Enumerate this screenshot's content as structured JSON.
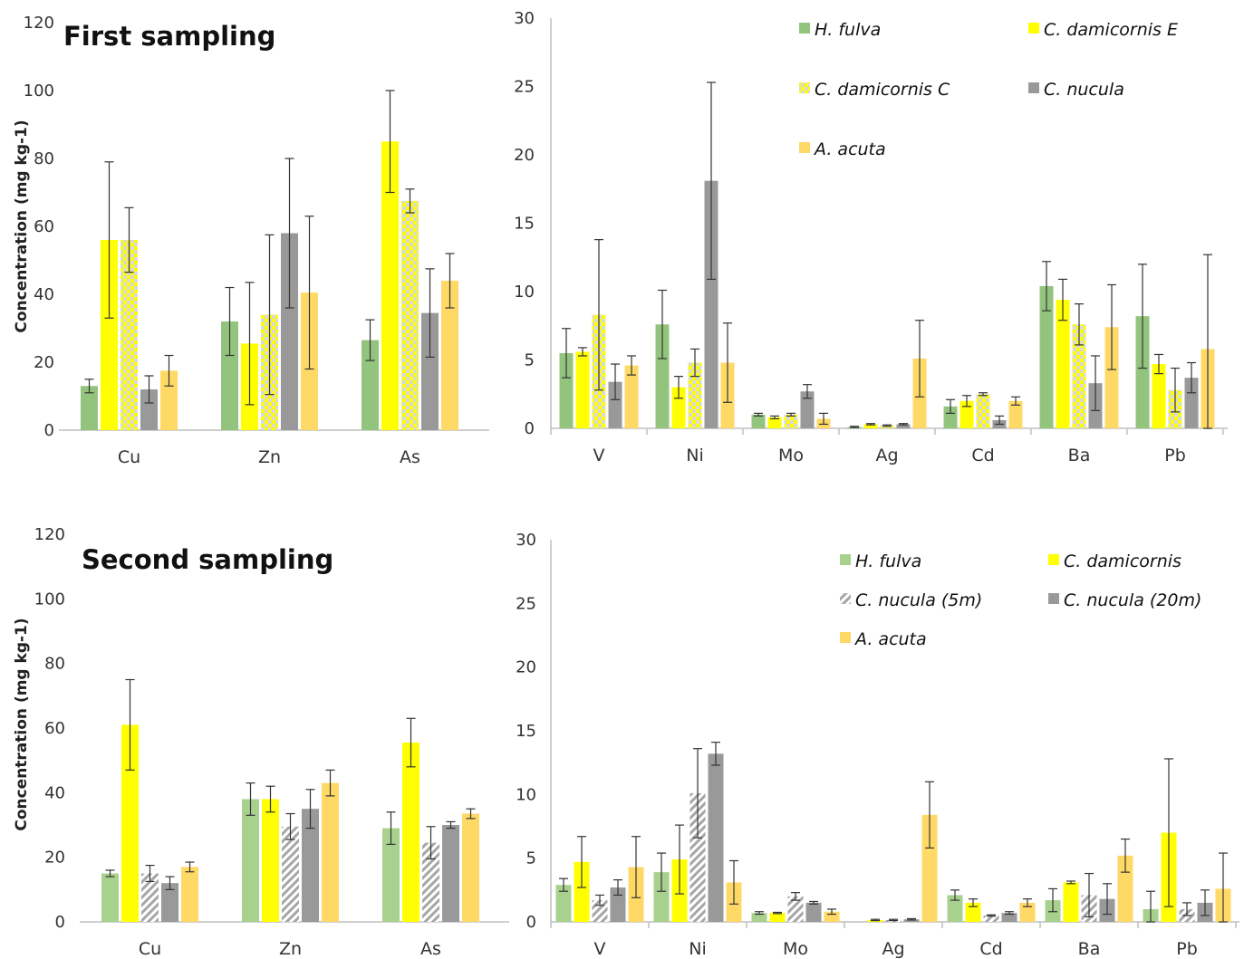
{
  "chart_data": [
    {
      "type": "bar",
      "title": "First sampling",
      "ylabel": "Concentration (mg kg-1)",
      "ylim": [
        0,
        120
      ],
      "yticks": [
        0,
        20,
        40,
        60,
        80,
        100,
        120
      ],
      "categories": [
        "Cu",
        "Zn",
        "As"
      ],
      "series": [
        {
          "name": "H. fulva",
          "color": "#93c47d",
          "pattern": "solid",
          "values": [
            13,
            32,
            26.5
          ],
          "errors": [
            2,
            10,
            6
          ]
        },
        {
          "name": "C. damicornis E",
          "color": "#ffff00",
          "pattern": "solid",
          "values": [
            56,
            25.5,
            85
          ],
          "errors": [
            23,
            18,
            15
          ]
        },
        {
          "name": "C. damicornis C",
          "color": "#ffff00",
          "pattern": "checker",
          "values": [
            56,
            34,
            67.5
          ],
          "errors": [
            9.5,
            23.5,
            3.5
          ]
        },
        {
          "name": "C. nucula",
          "color": "#999999",
          "pattern": "solid",
          "values": [
            12,
            58,
            34.5
          ],
          "errors": [
            4,
            22,
            13
          ]
        },
        {
          "name": "A. acuta",
          "color": "#ffd966",
          "pattern": "solid",
          "values": [
            17.5,
            40.5,
            44
          ],
          "errors": [
            4.5,
            22.5,
            8
          ]
        }
      ],
      "legend": "none"
    },
    {
      "type": "bar",
      "ylim": [
        0,
        30
      ],
      "yticks": [
        0,
        5,
        10,
        15,
        20,
        25,
        30
      ],
      "categories": [
        "V",
        "Ni",
        "Mo",
        "Ag",
        "Cd",
        "Ba",
        "Pb"
      ],
      "series": [
        {
          "name": "H. fulva",
          "color": "#93c47d",
          "pattern": "solid",
          "values": [
            5.5,
            7.6,
            1,
            0.1,
            1.6,
            10.4,
            8.2
          ],
          "errors": [
            1.8,
            2.5,
            0.1,
            0.05,
            0.5,
            1.8,
            3.8
          ]
        },
        {
          "name": "C. damicornis E",
          "color": "#ffff00",
          "pattern": "solid",
          "values": [
            5.6,
            3,
            0.8,
            0.3,
            2,
            9.4,
            4.7
          ],
          "errors": [
            0.3,
            0.8,
            0.1,
            0.05,
            0.4,
            1.5,
            0.7
          ]
        },
        {
          "name": "C. damicornis C",
          "color": "#ffff00",
          "pattern": "checker",
          "values": [
            8.3,
            4.8,
            1,
            0.2,
            2.5,
            7.6,
            2.8
          ],
          "errors": [
            5.5,
            1,
            0.1,
            0.05,
            0.1,
            1.5,
            1.6
          ]
        },
        {
          "name": "C. nucula",
          "color": "#999999",
          "pattern": "solid",
          "values": [
            3.4,
            18.1,
            2.7,
            0.3,
            0.6,
            3.3,
            3.7
          ],
          "errors": [
            1.3,
            7.2,
            0.5,
            0.05,
            0.3,
            2,
            1.1
          ]
        },
        {
          "name": "A. acuta",
          "color": "#ffd966",
          "pattern": "solid",
          "values": [
            4.6,
            4.8,
            0.7,
            5.1,
            2,
            7.4,
            5.8
          ],
          "errors": [
            0.7,
            2.9,
            0.4,
            2.8,
            0.3,
            3.1,
            6.9
          ]
        }
      ],
      "legend": "top-right"
    },
    {
      "type": "bar",
      "title": "Second sampling",
      "ylabel": "Concentration (mg kg-1)",
      "ylim": [
        0,
        120
      ],
      "yticks": [
        0,
        20,
        40,
        60,
        80,
        100,
        120
      ],
      "categories": [
        "Cu",
        "Zn",
        "As"
      ],
      "series": [
        {
          "name": "H. fulva",
          "color": "#a9d18e",
          "pattern": "solid",
          "values": [
            15,
            38,
            29
          ],
          "errors": [
            1,
            5,
            5
          ]
        },
        {
          "name": "C. damicornis",
          "color": "#ffff00",
          "pattern": "solid",
          "values": [
            61,
            38,
            55.5
          ],
          "errors": [
            14,
            4,
            7.5
          ]
        },
        {
          "name": "C. nucula (5m)",
          "color": "#a6a6a6",
          "pattern": "hatch",
          "values": [
            15,
            29.5,
            24.5
          ],
          "errors": [
            2.5,
            4,
            5
          ]
        },
        {
          "name": "C. nucula (20m)",
          "color": "#999999",
          "pattern": "solid",
          "values": [
            12,
            35,
            30
          ],
          "errors": [
            2,
            6,
            1
          ]
        },
        {
          "name": "A. acuta",
          "color": "#ffd966",
          "pattern": "solid",
          "values": [
            17,
            43,
            33.5
          ],
          "errors": [
            1.5,
            4,
            1.5
          ]
        }
      ],
      "legend": "none"
    },
    {
      "type": "bar",
      "ylim": [
        0,
        30
      ],
      "yticks": [
        0,
        5,
        10,
        15,
        20,
        25,
        30
      ],
      "categories": [
        "V",
        "Ni",
        "Mo",
        "Ag",
        "Cd",
        "Ba",
        "Pb"
      ],
      "series": [
        {
          "name": "H. fulva",
          "color": "#a9d18e",
          "pattern": "solid",
          "values": [
            2.9,
            3.9,
            0.7,
            0,
            2.1,
            1.7,
            1
          ],
          "errors": [
            0.5,
            1.5,
            0.1,
            0,
            0.4,
            0.9,
            1.4
          ]
        },
        {
          "name": "C. damicornis",
          "color": "#ffff00",
          "pattern": "solid",
          "values": [
            4.7,
            4.9,
            0.7,
            0.15,
            1.5,
            3.1,
            7
          ],
          "errors": [
            2,
            2.7,
            0.05,
            0.05,
            0.3,
            0.1,
            5.8
          ]
        },
        {
          "name": "C. nucula (5m)",
          "color": "#a6a6a6",
          "pattern": "hatch",
          "values": [
            1.7,
            10.1,
            2,
            0.15,
            0.5,
            2.1,
            1
          ],
          "errors": [
            0.4,
            3.5,
            0.3,
            0.05,
            0.05,
            1.7,
            0.5
          ]
        },
        {
          "name": "C. nucula (20m)",
          "color": "#999999",
          "pattern": "solid",
          "values": [
            2.7,
            13.2,
            1.5,
            0.2,
            0.7,
            1.8,
            1.5
          ],
          "errors": [
            0.6,
            0.9,
            0.1,
            0.05,
            0.1,
            1.2,
            1
          ]
        },
        {
          "name": "A. acuta",
          "color": "#ffd966",
          "pattern": "solid",
          "values": [
            4.3,
            3.1,
            0.8,
            8.4,
            1.5,
            5.2,
            2.6
          ],
          "errors": [
            2.4,
            1.7,
            0.2,
            2.6,
            0.3,
            1.3,
            2.8
          ]
        }
      ],
      "legend": "top-right"
    }
  ]
}
